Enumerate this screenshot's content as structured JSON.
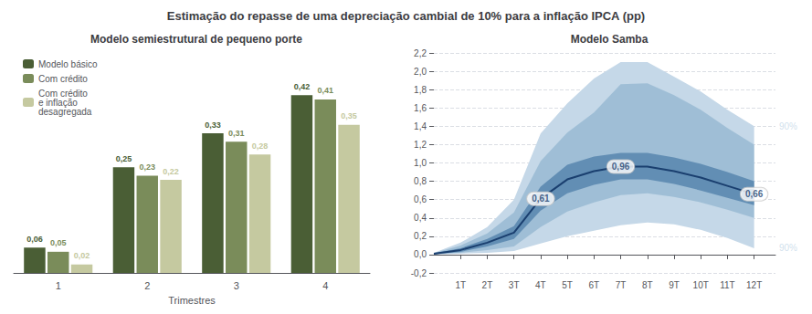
{
  "title": "Estimação do repasse de uma depreciação cambial de 10% para a inflação IPCA (pp)",
  "chart_data": [
    {
      "type": "bar",
      "title": "Modelo semiestrutural de pequeno porte",
      "categories": [
        "1",
        "2",
        "3",
        "4"
      ],
      "xlabel": "Trimestres",
      "series": [
        {
          "name": "Modelo básico",
          "color": "#4a5e35",
          "values": [
            0.06,
            0.25,
            0.33,
            0.42
          ],
          "value_labels": [
            "0,06",
            "0,25",
            "0,33",
            "0,42"
          ]
        },
        {
          "name": "Com crédito",
          "color": "#7a8c5a",
          "values": [
            0.05,
            0.23,
            0.31,
            0.41
          ],
          "value_labels": [
            "0,05",
            "0,23",
            "0,31",
            "0,41"
          ]
        },
        {
          "name": "Com crédito\ne inflação\ndesagregada",
          "color": "#c5c9a0",
          "values": [
            0.02,
            0.22,
            0.28,
            0.35
          ],
          "value_labels": [
            "0,02",
            "0,22",
            "0,28",
            "0,35"
          ]
        }
      ],
      "ylim": [
        0,
        0.52
      ],
      "data_labels": true,
      "legend": "upper left",
      "tick_labels": "x",
      "grid": false
    },
    {
      "type": "line",
      "title": "Modelo Samba",
      "x": [
        0,
        1,
        2,
        3,
        4,
        5,
        6,
        7,
        8,
        9,
        10,
        11,
        12
      ],
      "values": [
        0.01,
        0.05,
        0.13,
        0.24,
        0.61,
        0.82,
        0.91,
        0.96,
        0.96,
        0.91,
        0.84,
        0.75,
        0.66
      ],
      "color": "#1a3f6f",
      "bands": [
        {
          "lower": [
            0.001,
            0.01,
            0.02,
            0.04,
            0.12,
            0.2,
            0.26,
            0.32,
            0.35,
            0.33,
            0.27,
            0.18,
            0.07
          ],
          "upper": [
            0.019,
            0.13,
            0.3,
            0.6,
            1.32,
            1.65,
            1.92,
            2.1,
            2.1,
            1.94,
            1.78,
            1.58,
            1.4
          ],
          "color": "#c5d8e8",
          "label": "90%"
        },
        {
          "lower": [
            0.003,
            0.02,
            0.05,
            0.09,
            0.3,
            0.47,
            0.57,
            0.65,
            0.67,
            0.63,
            0.57,
            0.49,
            0.4
          ],
          "upper": [
            0.017,
            0.1,
            0.23,
            0.46,
            1.02,
            1.33,
            1.55,
            1.86,
            1.87,
            1.74,
            1.58,
            1.38,
            1.2
          ],
          "color": "#8ab0cc"
        },
        {
          "lower": [
            0.005,
            0.03,
            0.09,
            0.17,
            0.48,
            0.67,
            0.76,
            0.82,
            0.82,
            0.77,
            0.7,
            0.62,
            0.54
          ],
          "upper": [
            0.015,
            0.07,
            0.17,
            0.31,
            0.74,
            0.98,
            1.07,
            1.11,
            1.11,
            1.06,
            0.99,
            0.9,
            0.8
          ],
          "color": "#4d7ea8"
        }
      ],
      "annotations": [
        {
          "x": 4,
          "y": 0.61,
          "text": "0,61"
        },
        {
          "x": 7,
          "y": 0.96,
          "text": "0,96"
        },
        {
          "x": 12,
          "y": 0.66,
          "text": "0,66"
        }
      ],
      "xlim": [
        0,
        12.8
      ],
      "xticks": [
        {
          "value": 1,
          "label": "1T"
        },
        {
          "value": 2,
          "label": "2T"
        },
        {
          "value": 3,
          "label": "3T"
        },
        {
          "value": 4,
          "label": "4T"
        },
        {
          "value": 5,
          "label": "5T"
        },
        {
          "value": 6,
          "label": "6T"
        },
        {
          "value": 7,
          "label": "7T"
        },
        {
          "value": 8,
          "label": "8T"
        },
        {
          "value": 9,
          "label": "9T"
        },
        {
          "value": 10,
          "label": "10T"
        },
        {
          "value": 11,
          "label": "11T"
        },
        {
          "value": 12,
          "label": "12T"
        }
      ],
      "ylim": [
        -0.2,
        2.2
      ],
      "yticks": [
        {
          "value": -0.2,
          "label": "-0,2"
        },
        {
          "value": 0.0,
          "label": "0,0"
        },
        {
          "value": 0.2,
          "label": "0,2"
        },
        {
          "value": 0.4,
          "label": "0,4"
        },
        {
          "value": 0.6,
          "label": "0,6"
        },
        {
          "value": 0.8,
          "label": "0,8"
        },
        {
          "value": 1.0,
          "label": "1,0"
        },
        {
          "value": 1.2,
          "label": "1,2"
        },
        {
          "value": 1.4,
          "label": "1,4"
        },
        {
          "value": 1.6,
          "label": "1,6"
        },
        {
          "value": 1.8,
          "label": "1,8"
        },
        {
          "value": 2.0,
          "label": "2,0"
        },
        {
          "value": 2.2,
          "label": "2,2"
        }
      ],
      "grid": true
    }
  ]
}
